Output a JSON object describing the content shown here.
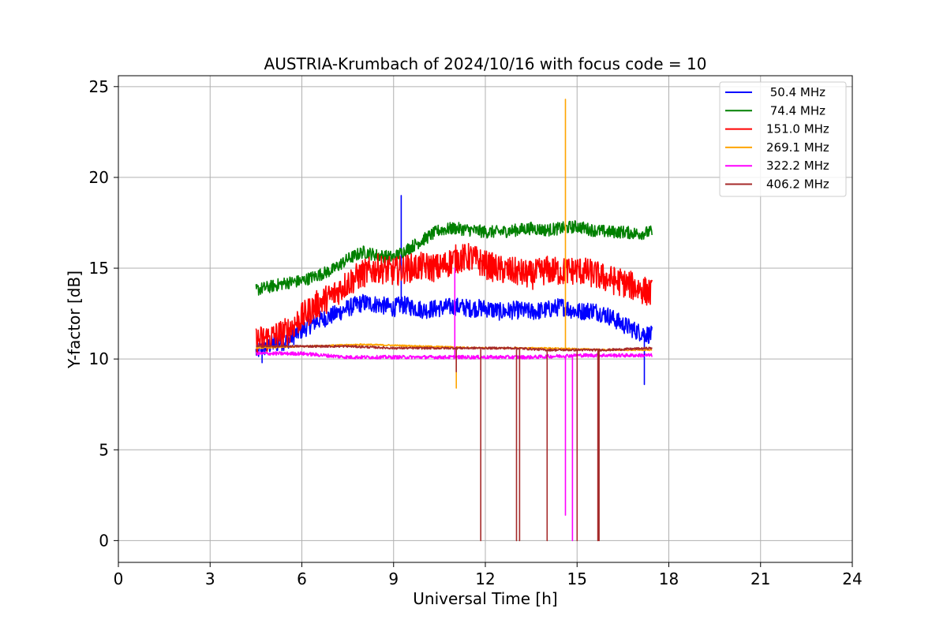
{
  "chart_data": {
    "type": "line",
    "title": "AUSTRIA-Krumbach of 2024/10/16 with focus code = 10",
    "xlabel": "Universal Time [h]",
    "ylabel": "Y-factor [dB]",
    "xlim": [
      0,
      24
    ],
    "ylim": [
      -1.2,
      25.6
    ],
    "x_ticks": [
      0,
      3,
      6,
      9,
      12,
      15,
      18,
      21,
      24
    ],
    "y_ticks": [
      0,
      5,
      10,
      15,
      20,
      25
    ],
    "grid": true,
    "legend_position": "top-right",
    "series": [
      {
        "name": " 50.4 MHz",
        "color": "#0000ff",
        "noise": 0.5,
        "x": [
          4.5,
          5.0,
          5.5,
          6.0,
          6.5,
          7.0,
          7.5,
          8.0,
          8.5,
          9.0,
          9.25,
          9.5,
          10.0,
          10.5,
          11.0,
          11.5,
          12.0,
          12.5,
          13.0,
          13.5,
          14.0,
          14.5,
          15.0,
          15.5,
          16.0,
          16.5,
          17.0,
          17.45
        ],
        "y": [
          10.4,
          10.8,
          11.0,
          11.6,
          12.1,
          12.4,
          12.8,
          13.1,
          13.0,
          12.8,
          13.0,
          12.9,
          12.7,
          12.8,
          12.9,
          12.8,
          12.8,
          12.6,
          12.7,
          12.6,
          12.7,
          12.9,
          12.6,
          12.7,
          12.4,
          11.9,
          11.5,
          11.3
        ],
        "spikes": [
          [
            9.25,
            19.0
          ],
          [
            17.2,
            8.6
          ],
          [
            4.7,
            9.8
          ]
        ]
      },
      {
        "name": " 74.4 MHz",
        "color": "#008000",
        "noise": 0.35,
        "x": [
          4.5,
          5.0,
          5.5,
          6.0,
          6.5,
          7.0,
          7.5,
          8.0,
          8.5,
          9.0,
          9.5,
          10.0,
          10.5,
          11.0,
          11.5,
          12.0,
          12.5,
          13.0,
          13.5,
          14.0,
          14.5,
          15.0,
          15.5,
          16.0,
          16.5,
          17.0,
          17.45
        ],
        "y": [
          13.8,
          14.0,
          14.2,
          14.3,
          14.6,
          14.9,
          15.5,
          15.9,
          15.7,
          15.6,
          16.1,
          16.6,
          17.1,
          17.2,
          17.1,
          17.0,
          17.0,
          17.1,
          17.2,
          17.1,
          17.2,
          17.3,
          17.1,
          17.0,
          17.0,
          16.9,
          17.0
        ],
        "spikes": []
      },
      {
        "name": "151.0 MHz",
        "color": "#ff0000",
        "noise": 0.8,
        "x": [
          4.5,
          5.0,
          5.5,
          6.0,
          6.5,
          7.0,
          7.5,
          8.0,
          8.5,
          9.0,
          9.5,
          10.0,
          10.5,
          11.0,
          11.5,
          12.0,
          12.5,
          13.0,
          13.5,
          14.0,
          14.5,
          15.0,
          15.5,
          16.0,
          16.5,
          17.0,
          17.45
        ],
        "y": [
          11.0,
          11.2,
          11.5,
          12.3,
          13.0,
          13.5,
          14.2,
          14.7,
          15.0,
          14.8,
          15.0,
          15.1,
          15.0,
          15.5,
          15.6,
          15.2,
          14.9,
          14.8,
          14.6,
          14.9,
          14.8,
          14.9,
          14.7,
          14.4,
          14.2,
          13.9,
          13.6
        ],
        "spikes": []
      },
      {
        "name": "269.1 MHz",
        "color": "#ffa500",
        "noise": 0.04,
        "x": [
          4.5,
          6.0,
          8.0,
          10.0,
          12.0,
          14.0,
          16.0,
          17.45
        ],
        "y": [
          10.6,
          10.7,
          10.8,
          10.7,
          10.6,
          10.6,
          10.5,
          10.5
        ],
        "spikes": [
          [
            11.05,
            8.4
          ],
          [
            14.62,
            24.3
          ]
        ]
      },
      {
        "name": "322.2 MHz",
        "color": "#ff00ff",
        "noise": 0.1,
        "x": [
          4.5,
          6.0,
          7.5,
          9.0,
          10.5,
          12.0,
          13.5,
          15.0,
          16.5,
          17.45
        ],
        "y": [
          10.3,
          10.3,
          10.1,
          10.1,
          10.1,
          10.1,
          10.1,
          10.2,
          10.2,
          10.2
        ],
        "spikes": [
          [
            11.0,
            15.0
          ],
          [
            14.62,
            1.4
          ],
          [
            14.85,
            0.0
          ]
        ]
      },
      {
        "name": "406.2 MHz",
        "color": "#a52a2a",
        "noise": 0.06,
        "x": [
          4.5,
          6.0,
          7.5,
          9.0,
          10.5,
          12.0,
          13.0,
          14.0,
          15.0,
          16.0,
          17.45
        ],
        "y": [
          10.7,
          10.7,
          10.7,
          10.6,
          10.6,
          10.6,
          10.6,
          10.5,
          10.5,
          10.5,
          10.6
        ],
        "spikes": [
          [
            11.05,
            9.3
          ],
          [
            11.85,
            0.0
          ],
          [
            13.02,
            0.0
          ],
          [
            13.12,
            0.0
          ],
          [
            14.02,
            0.0
          ],
          [
            15.0,
            0.0
          ],
          [
            15.68,
            0.0
          ],
          [
            15.72,
            0.0
          ]
        ]
      }
    ]
  }
}
